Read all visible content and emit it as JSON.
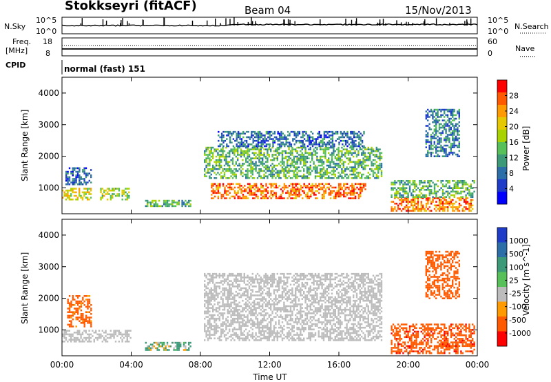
{
  "header": {
    "station": "Stokkseyri (fitACF)",
    "beam": "Beam 04",
    "date": "15/Nov/2013"
  },
  "noise_panel": {
    "left_label": "N.Sky",
    "left_ticks": [
      "10^5",
      "10^0"
    ],
    "right_ticks": [
      "10^5",
      "10^0"
    ],
    "right_label": "N.Search"
  },
  "freq_panel": {
    "left_label_1": "Freq.",
    "left_label_2": "[MHz]",
    "left_ticks": [
      "18",
      "8"
    ],
    "right_ticks": [
      "60",
      "0"
    ],
    "right_label": "Nave"
  },
  "cpid": {
    "label": "CPID",
    "value": "normal (fast) 151"
  },
  "x_axis": {
    "ticks": [
      "00:00",
      "04:00",
      "08:00",
      "12:00",
      "16:00",
      "20:00",
      "00:00"
    ],
    "label": "Time UT"
  },
  "chart_data": [
    {
      "type": "heatmap",
      "title": "Power",
      "ylabel": "Slant Range [km]",
      "xlabel": "Time UT",
      "ylim": [
        180,
        4500
      ],
      "xlim": [
        0,
        24
      ],
      "yticks": [
        "1000",
        "2000",
        "3000",
        "4000"
      ],
      "colorbar": {
        "label": "Power [dB]",
        "ticks": [
          "28",
          "24",
          "20",
          "16",
          "12",
          "8",
          "4"
        ],
        "colors": [
          "#ff0000",
          "#ff5a00",
          "#ff9a00",
          "#e6c800",
          "#a8d200",
          "#58c058",
          "#3c9a78",
          "#2b6ea8",
          "#1f3cc8",
          "#0000ff"
        ]
      },
      "bands": [
        {
          "t0": 0.0,
          "t1": 1.7,
          "r0": 650,
          "r1": 1000,
          "value": 20
        },
        {
          "t0": 2.2,
          "t1": 3.9,
          "r0": 650,
          "r1": 1000,
          "value": 18
        },
        {
          "t0": 0.2,
          "t1": 1.7,
          "r0": 1100,
          "r1": 1650,
          "value": 8
        },
        {
          "t0": 4.8,
          "t1": 7.4,
          "r0": 420,
          "r1": 620,
          "value": 14
        },
        {
          "t0": 8.6,
          "t1": 17.5,
          "r0": 650,
          "r1": 1150,
          "value": 26
        },
        {
          "t0": 8.2,
          "t1": 18.5,
          "r0": 1300,
          "r1": 2300,
          "value": 14
        },
        {
          "t0": 9.0,
          "t1": 17.5,
          "r0": 2300,
          "r1": 2800,
          "value": 9
        },
        {
          "t0": 19.0,
          "t1": 23.7,
          "r0": 280,
          "r1": 700,
          "value": 26
        },
        {
          "t0": 19.0,
          "t1": 23.8,
          "r0": 700,
          "r1": 1250,
          "value": 14
        },
        {
          "t0": 21.0,
          "t1": 23.0,
          "r0": 2000,
          "r1": 3500,
          "value": 10
        }
      ]
    },
    {
      "type": "heatmap",
      "title": "Velocity",
      "ylabel": "Slant Range [km]",
      "xlabel": "Time UT",
      "ylim": [
        180,
        4500
      ],
      "xlim": [
        0,
        24
      ],
      "yticks": [
        "1000",
        "2000",
        "3000",
        "4000"
      ],
      "colorbar": {
        "label": "Velocity [m s^-1]",
        "ticks": [
          "1000",
          "500",
          "100",
          "25",
          "-25",
          "-100",
          "-500",
          "-1000"
        ],
        "colors": [
          "#1f3cc8",
          "#2b6ea8",
          "#3c9a78",
          "#58c058",
          "#bcbcbc",
          "#ff9a00",
          "#ff5a00",
          "#ff0000"
        ]
      },
      "bands": [
        {
          "t0": 0.0,
          "t1": 4.0,
          "r0": 650,
          "r1": 1000,
          "value": 0
        },
        {
          "t0": 0.3,
          "t1": 1.7,
          "r0": 1100,
          "r1": 2100,
          "value": -200
        },
        {
          "t0": 4.8,
          "t1": 7.4,
          "r0": 350,
          "r1": 620,
          "value": 60
        },
        {
          "t0": 8.2,
          "t1": 18.5,
          "r0": 700,
          "r1": 2800,
          "value": 0
        },
        {
          "t0": 19.0,
          "t1": 23.8,
          "r0": 280,
          "r1": 1200,
          "value": -400
        },
        {
          "t0": 21.0,
          "t1": 23.0,
          "r0": 2000,
          "r1": 3500,
          "value": -300
        }
      ]
    }
  ]
}
